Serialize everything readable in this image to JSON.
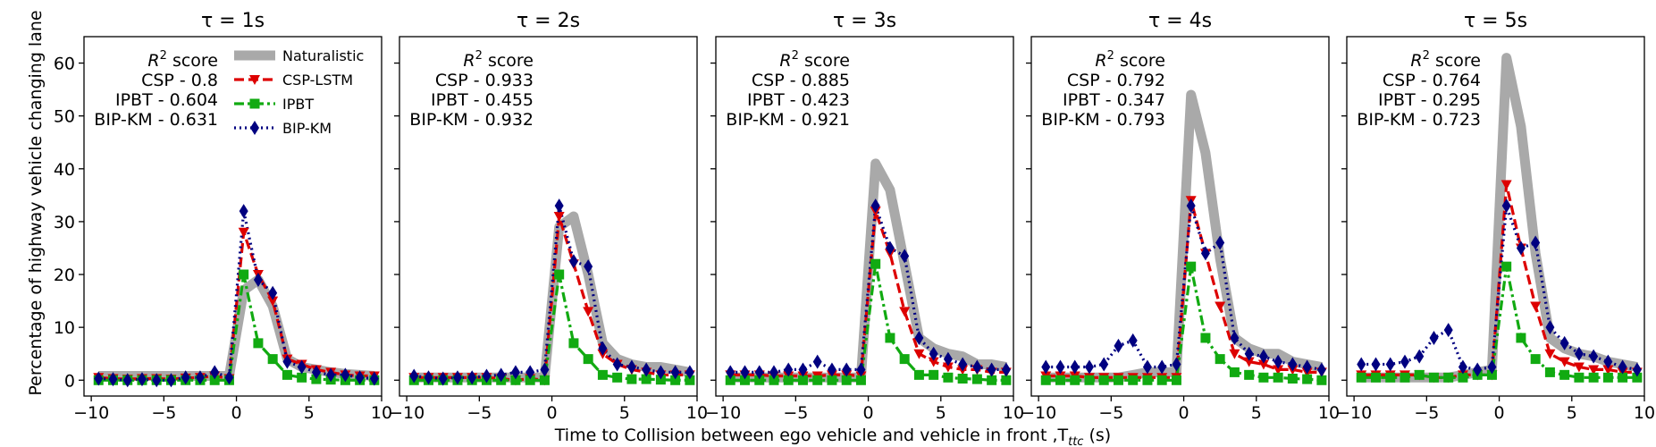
{
  "figure": {
    "shared_ylabel": "Percentage of highway vehicle changing lane",
    "shared_xlabel_main": "Time to Collision between ego vehicle and vehicle in front ,T",
    "shared_xlabel_sub": "ttc",
    "shared_xlabel_unit": " (s)"
  },
  "legend": {
    "location": "upper-right of first panel",
    "entries": [
      {
        "series": "naturalistic",
        "label": "Naturalistic"
      },
      {
        "series": "csp",
        "label": "CSP-LSTM"
      },
      {
        "series": "ipbt",
        "label": "IPBT"
      },
      {
        "series": "bip",
        "label": "BIP-KM"
      }
    ]
  },
  "colors": {
    "naturalistic": "#a9a9a9",
    "csp": "#dd0000",
    "ipbt": "#11aa11",
    "bip": "#000080"
  },
  "chart_data": [
    {
      "type": "line",
      "title": "τ = 1s",
      "xlim": [
        -10.5,
        10
      ],
      "ylim": [
        -3,
        65
      ],
      "xticks": [
        -10,
        -5,
        0,
        5,
        10
      ],
      "yticks": [
        0,
        10,
        20,
        30,
        40,
        50,
        60
      ],
      "score_heading_r": "R",
      "score_heading_sup": "2",
      "score_heading_rest": " score",
      "scores": [
        "CSP - 0.8",
        "IPBT - 0.604",
        "BIP-KM - 0.631"
      ],
      "series": [
        {
          "name": "Naturalistic",
          "key": "naturalistic",
          "x": [
            -9.5,
            -8.5,
            -7.5,
            -6.5,
            -5.5,
            -4.5,
            -3.5,
            -2.5,
            -1.5,
            -0.5,
            0.5,
            1.5,
            2.5,
            3.5,
            4.5,
            5.5,
            6.5,
            7.5,
            8.5,
            9.5
          ],
          "y": [
            0.8,
            0.8,
            0.8,
            0.8,
            0.8,
            0.8,
            0.8,
            0.8,
            0.8,
            0.8,
            17,
            19,
            14,
            4,
            2.5,
            2,
            1.5,
            1.2,
            1,
            0.8
          ]
        },
        {
          "name": "CSP-LSTM",
          "key": "csp",
          "x": [
            -9.5,
            -8.5,
            -7.5,
            -6.5,
            -5.5,
            -4.5,
            -3.5,
            -2.5,
            -1.5,
            -0.5,
            0.5,
            1.5,
            2.5,
            3.5,
            4.5,
            5.5,
            6.5,
            7.5,
            8.5,
            9.5
          ],
          "y": [
            0.5,
            0.3,
            0.2,
            0.3,
            0.3,
            0.2,
            0.4,
            0.5,
            0.8,
            0.3,
            28,
            20,
            15,
            4,
            3,
            2,
            1.5,
            1,
            0.8,
            0.8
          ]
        },
        {
          "name": "IPBT",
          "key": "ipbt",
          "x": [
            -9.5,
            -8.5,
            -7.5,
            -6.5,
            -5.5,
            -4.5,
            -3.5,
            -2.5,
            -1.5,
            -0.5,
            0.5,
            1.5,
            2.5,
            3.5,
            4.5,
            5.5,
            6.5,
            7.5,
            8.5,
            9.5
          ],
          "y": [
            0,
            0,
            0,
            0,
            0,
            0,
            0,
            0,
            0,
            0,
            20,
            7,
            4,
            1,
            0.5,
            0.2,
            0.1,
            0,
            0,
            0
          ]
        },
        {
          "name": "BIP-KM",
          "key": "bip",
          "x": [
            -9.5,
            -8.5,
            -7.5,
            -6.5,
            -5.5,
            -4.5,
            -3.5,
            -2.5,
            -1.5,
            -0.5,
            0.5,
            1.5,
            2.5,
            3.5,
            4.5,
            5.5,
            6.5,
            7.5,
            8.5,
            9.5
          ],
          "y": [
            0.3,
            0.2,
            0,
            0.2,
            0,
            0,
            0.5,
            0.5,
            1.5,
            0.5,
            32,
            19,
            16.5,
            3.5,
            2.5,
            1.5,
            1,
            1,
            0.5,
            0.3
          ]
        }
      ]
    },
    {
      "type": "line",
      "title": "τ = 2s",
      "xlim": [
        -10.5,
        10
      ],
      "ylim": [
        -3,
        65
      ],
      "xticks": [
        -10,
        -5,
        0,
        5,
        10
      ],
      "yticks": [
        0,
        10,
        20,
        30,
        40,
        50,
        60
      ],
      "score_heading_r": "R",
      "score_heading_sup": "2",
      "score_heading_rest": " score",
      "scores": [
        "CSP - 0.933",
        "IPBT - 0.455",
        "BIP-KM - 0.932"
      ],
      "series": [
        {
          "name": "Naturalistic",
          "key": "naturalistic",
          "x": [
            -9.5,
            -8.5,
            -7.5,
            -6.5,
            -5.5,
            -4.5,
            -3.5,
            -2.5,
            -1.5,
            -0.5,
            0.5,
            1.5,
            2.5,
            3.5,
            4.5,
            5.5,
            6.5,
            7.5,
            8.5,
            9.5
          ],
          "y": [
            0.5,
            0.5,
            0.5,
            0.5,
            0.5,
            0.5,
            0.5,
            0.5,
            0.5,
            0.5,
            29,
            31,
            20,
            7,
            4,
            3,
            2.5,
            2.5,
            2,
            1.5
          ]
        },
        {
          "name": "CSP-LSTM",
          "key": "csp",
          "x": [
            -9.5,
            -8.5,
            -7.5,
            -6.5,
            -5.5,
            -4.5,
            -3.5,
            -2.5,
            -1.5,
            -0.5,
            0.5,
            1.5,
            2.5,
            3.5,
            4.5,
            5.5,
            6.5,
            7.5,
            8.5,
            9.5
          ],
          "y": [
            0.5,
            0.5,
            0.5,
            0.5,
            0.5,
            0.5,
            0.3,
            0,
            0.3,
            0,
            31,
            22,
            13,
            5,
            3,
            2,
            1.5,
            1,
            1,
            1
          ]
        },
        {
          "name": "IPBT",
          "key": "ipbt",
          "x": [
            -9.5,
            -8.5,
            -7.5,
            -6.5,
            -5.5,
            -4.5,
            -3.5,
            -2.5,
            -1.5,
            -0.5,
            0.5,
            1.5,
            2.5,
            3.5,
            4.5,
            5.5,
            6.5,
            7.5,
            8.5,
            9.5
          ],
          "y": [
            0,
            0,
            0,
            0,
            0,
            0,
            0,
            0,
            0,
            0,
            20,
            7,
            4,
            1,
            0.5,
            0.2,
            0.2,
            0.1,
            0,
            0
          ]
        },
        {
          "name": "BIP-KM",
          "key": "bip",
          "x": [
            -9.5,
            -8.5,
            -7.5,
            -6.5,
            -5.5,
            -4.5,
            -3.5,
            -2.5,
            -1.5,
            -0.5,
            0.5,
            1.5,
            2.5,
            3.5,
            4.5,
            5.5,
            6.5,
            7.5,
            8.5,
            9.5
          ],
          "y": [
            0.8,
            0.5,
            0.3,
            0.5,
            0.5,
            0.8,
            1,
            1.5,
            1.5,
            2,
            33,
            22.5,
            21.5,
            6,
            3,
            2.5,
            2,
            1.5,
            1.5,
            1.5
          ]
        }
      ]
    },
    {
      "type": "line",
      "title": "τ = 3s",
      "xlim": [
        -10.5,
        10
      ],
      "ylim": [
        -3,
        65
      ],
      "xticks": [
        -10,
        -5,
        0,
        5,
        10
      ],
      "yticks": [
        0,
        10,
        20,
        30,
        40,
        50,
        60
      ],
      "score_heading_r": "R",
      "score_heading_sup": "2",
      "score_heading_rest": " score",
      "scores": [
        "CSP - 0.885",
        "IPBT - 0.423",
        "BIP-KM - 0.921"
      ],
      "series": [
        {
          "name": "Naturalistic",
          "key": "naturalistic",
          "x": [
            -9.5,
            -8.5,
            -7.5,
            -6.5,
            -5.5,
            -4.5,
            -3.5,
            -2.5,
            -1.5,
            -0.5,
            0.5,
            1.5,
            2.5,
            3.5,
            4.5,
            5.5,
            6.5,
            7.5,
            8.5,
            9.5
          ],
          "y": [
            0.5,
            0.5,
            0.5,
            0.5,
            0.5,
            0.5,
            0.5,
            0.5,
            0.5,
            0.5,
            41,
            36,
            22,
            8,
            6,
            5,
            4.5,
            3,
            3,
            2.5
          ]
        },
        {
          "name": "CSP-LSTM",
          "key": "csp",
          "x": [
            -9.5,
            -8.5,
            -7.5,
            -6.5,
            -5.5,
            -4.5,
            -3.5,
            -2.5,
            -1.5,
            -0.5,
            0.5,
            1.5,
            2.5,
            3.5,
            4.5,
            5.5,
            6.5,
            7.5,
            8.5,
            9.5
          ],
          "y": [
            1,
            1,
            1,
            0.8,
            0.8,
            0.8,
            0.8,
            1,
            1,
            0.8,
            32,
            24,
            13,
            5,
            3.5,
            2.5,
            2,
            2,
            1.5,
            1.5
          ]
        },
        {
          "name": "IPBT",
          "key": "ipbt",
          "x": [
            -9.5,
            -8.5,
            -7.5,
            -6.5,
            -5.5,
            -4.5,
            -3.5,
            -2.5,
            -1.5,
            -0.5,
            0.5,
            1.5,
            2.5,
            3.5,
            4.5,
            5.5,
            6.5,
            7.5,
            8.5,
            9.5
          ],
          "y": [
            0,
            0,
            0,
            0,
            0,
            0,
            0,
            0,
            0,
            0,
            22,
            8,
            4,
            1,
            1,
            0.5,
            0.3,
            0.2,
            0,
            0
          ]
        },
        {
          "name": "BIP-KM",
          "key": "bip",
          "x": [
            -9.5,
            -8.5,
            -7.5,
            -6.5,
            -5.5,
            -4.5,
            -3.5,
            -2.5,
            -1.5,
            -0.5,
            0.5,
            1.5,
            2.5,
            3.5,
            4.5,
            5.5,
            6.5,
            7.5,
            8.5,
            9.5
          ],
          "y": [
            1.5,
            1.5,
            1.5,
            1.5,
            2,
            2,
            3.5,
            2,
            2,
            2,
            33,
            25,
            23.5,
            8,
            5,
            4,
            3,
            2.5,
            2,
            2
          ]
        }
      ]
    },
    {
      "type": "line",
      "title": "τ = 4s",
      "xlim": [
        -10.5,
        10
      ],
      "ylim": [
        -3,
        65
      ],
      "xticks": [
        -10,
        -5,
        0,
        5,
        10
      ],
      "yticks": [
        0,
        10,
        20,
        30,
        40,
        50,
        60
      ],
      "score_heading_r": "R",
      "score_heading_sup": "2",
      "score_heading_rest": " score",
      "scores": [
        "CSP - 0.792",
        "IPBT - 0.347",
        "BIP-KM - 0.793"
      ],
      "series": [
        {
          "name": "Naturalistic",
          "key": "naturalistic",
          "x": [
            -9.5,
            -8.5,
            -7.5,
            -6.5,
            -5.5,
            -4.5,
            -3.5,
            -2.5,
            -1.5,
            -0.5,
            0.5,
            1.5,
            2.5,
            3.5,
            4.5,
            5.5,
            6.5,
            7.5,
            8.5,
            9.5
          ],
          "y": [
            0.5,
            0.5,
            0.5,
            0.5,
            0.5,
            0.5,
            1,
            1.5,
            1.5,
            1.5,
            54,
            43,
            23,
            8,
            6,
            5,
            5,
            3.5,
            3,
            2.5
          ]
        },
        {
          "name": "CSP-LSTM",
          "key": "csp",
          "x": [
            -9.5,
            -8.5,
            -7.5,
            -6.5,
            -5.5,
            -4.5,
            -3.5,
            -2.5,
            -1.5,
            -0.5,
            0.5,
            1.5,
            2.5,
            3.5,
            4.5,
            5.5,
            6.5,
            7.5,
            8.5,
            9.5
          ],
          "y": [
            0.8,
            0.8,
            0.8,
            0.5,
            0.5,
            0.5,
            0.5,
            0.5,
            0.5,
            0.5,
            34,
            24,
            14,
            5,
            3.5,
            3,
            2,
            2,
            1.5,
            1.5
          ]
        },
        {
          "name": "IPBT",
          "key": "ipbt",
          "x": [
            -9.5,
            -8.5,
            -7.5,
            -6.5,
            -5.5,
            -4.5,
            -3.5,
            -2.5,
            -1.5,
            -0.5,
            0.5,
            1.5,
            2.5,
            3.5,
            4.5,
            5.5,
            6.5,
            7.5,
            8.5,
            9.5
          ],
          "y": [
            0,
            0,
            0,
            0,
            0,
            0,
            0,
            0,
            0,
            0,
            21.5,
            8,
            4,
            1.5,
            1,
            0.5,
            0.5,
            0.3,
            0.2,
            0
          ]
        },
        {
          "name": "BIP-KM",
          "key": "bip",
          "x": [
            -9.5,
            -8.5,
            -7.5,
            -6.5,
            -5.5,
            -4.5,
            -3.5,
            -2.5,
            -1.5,
            -0.5,
            0.5,
            1.5,
            2.5,
            3.5,
            4.5,
            5.5,
            6.5,
            7.5,
            8.5,
            9.5
          ],
          "y": [
            2.5,
            2.5,
            2.5,
            2.5,
            3,
            6.5,
            7.5,
            2.5,
            2.5,
            3,
            33,
            24,
            26,
            8,
            5,
            4.5,
            3.5,
            3,
            2.5,
            2
          ]
        }
      ]
    },
    {
      "type": "line",
      "title": "τ = 5s",
      "xlim": [
        -10.5,
        10
      ],
      "ylim": [
        -3,
        65
      ],
      "xticks": [
        -10,
        -5,
        0,
        5,
        10
      ],
      "yticks": [
        0,
        10,
        20,
        30,
        40,
        50,
        60
      ],
      "score_heading_r": "R",
      "score_heading_sup": "2",
      "score_heading_rest": " score",
      "scores": [
        "CSP - 0.764",
        "IPBT - 0.295",
        "BIP-KM - 0.723"
      ],
      "series": [
        {
          "name": "Naturalistic",
          "key": "naturalistic",
          "x": [
            -9.5,
            -8.5,
            -7.5,
            -6.5,
            -5.5,
            -4.5,
            -3.5,
            -2.5,
            -1.5,
            -0.5,
            0.5,
            1.5,
            2.5,
            3.5,
            4.5,
            5.5,
            6.5,
            7.5,
            8.5,
            9.5
          ],
          "y": [
            0.5,
            0.5,
            0.5,
            0.5,
            0.5,
            0.5,
            0.5,
            1,
            1.5,
            2,
            61,
            48,
            24,
            8,
            6,
            5,
            4.5,
            3.5,
            3,
            2.5
          ]
        },
        {
          "name": "CSP-LSTM",
          "key": "csp",
          "x": [
            -9.5,
            -8.5,
            -7.5,
            -6.5,
            -5.5,
            -4.5,
            -3.5,
            -2.5,
            -1.5,
            -0.5,
            0.5,
            1.5,
            2.5,
            3.5,
            4.5,
            5.5,
            6.5,
            7.5,
            8.5,
            9.5
          ],
          "y": [
            1,
            1,
            1,
            1,
            1,
            0.5,
            0.5,
            1,
            1,
            1,
            37,
            25,
            14,
            5,
            3.5,
            2.5,
            2,
            2,
            1.5,
            1.5
          ]
        },
        {
          "name": "IPBT",
          "key": "ipbt",
          "x": [
            -9.5,
            -8.5,
            -7.5,
            -6.5,
            -5.5,
            -4.5,
            -3.5,
            -2.5,
            -1.5,
            -0.5,
            0.5,
            1.5,
            2.5,
            3.5,
            4.5,
            5.5,
            6.5,
            7.5,
            8.5,
            9.5
          ],
          "y": [
            0.5,
            0.5,
            0.5,
            0.5,
            1,
            0.5,
            0.5,
            0.5,
            1,
            1,
            21.5,
            8,
            4,
            1.5,
            1,
            0.5,
            0.5,
            0.5,
            0.5,
            0.5
          ]
        },
        {
          "name": "BIP-KM",
          "key": "bip",
          "x": [
            -9.5,
            -8.5,
            -7.5,
            -6.5,
            -5.5,
            -4.5,
            -3.5,
            -2.5,
            -1.5,
            -0.5,
            0.5,
            1.5,
            2.5,
            3.5,
            4.5,
            5.5,
            6.5,
            7.5,
            8.5,
            9.5
          ],
          "y": [
            3,
            3,
            3,
            3.5,
            4.5,
            8,
            9.5,
            2.5,
            2,
            2.5,
            33,
            25,
            26,
            10,
            7,
            5,
            4.5,
            3.5,
            2.5,
            2
          ]
        }
      ]
    }
  ]
}
